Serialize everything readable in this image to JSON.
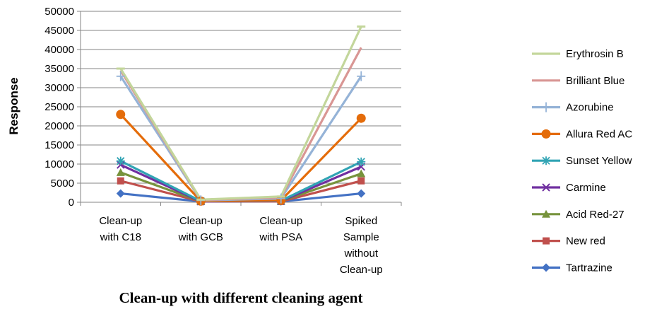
{
  "chart_data": {
    "type": "line",
    "categories": [
      [
        "Clean-up",
        "with C18"
      ],
      [
        "Clean-up",
        "with GCB"
      ],
      [
        "Clean-up",
        "with PSA"
      ],
      [
        "Spiked",
        "Sample",
        "without",
        "Clean-up"
      ]
    ],
    "xlabel": "Clean-up with different cleaning agent",
    "ylabel": "Response",
    "ylim": [
      0,
      50000
    ],
    "yticks": [
      0,
      5000,
      10000,
      15000,
      20000,
      25000,
      30000,
      35000,
      40000,
      45000,
      50000
    ],
    "grid": "horizontal",
    "legend_position": "right",
    "series": [
      {
        "name": "Tartrazine",
        "color": "#4472C4",
        "marker": "diamond",
        "values": [
          2300,
          200,
          200,
          2300
        ]
      },
      {
        "name": "New red",
        "color": "#C0504D",
        "marker": "square",
        "values": [
          5600,
          200,
          200,
          5600
        ]
      },
      {
        "name": "Acid Red-27",
        "color": "#77933C",
        "marker": "triangle",
        "values": [
          7800,
          200,
          300,
          7500
        ]
      },
      {
        "name": "Carmine",
        "color": "#7030A0",
        "marker": "x",
        "values": [
          9800,
          200,
          300,
          9300
        ]
      },
      {
        "name": "Sunset Yellow",
        "color": "#31A4B4",
        "marker": "star",
        "values": [
          10800,
          300,
          400,
          10600
        ]
      },
      {
        "name": "Allura Red AC",
        "color": "#E46C0A",
        "marker": "circle",
        "values": [
          23000,
          300,
          500,
          22000
        ]
      },
      {
        "name": "Azorubine",
        "color": "#95B3D7",
        "marker": "plus",
        "values": [
          33000,
          500,
          1000,
          33000
        ]
      },
      {
        "name": "Brilliant Blue",
        "color": "#D99694",
        "marker": "none",
        "values": [
          34500,
          600,
          1300,
          40500
        ]
      },
      {
        "name": "Erythrosin B",
        "color": "#C3D69B",
        "marker": "dash",
        "values": [
          35000,
          700,
          1500,
          46000
        ]
      }
    ],
    "legend_order": [
      "Erythrosin B",
      "Brilliant Blue",
      "Azorubine",
      "Allura Red AC",
      "Sunset Yellow",
      "Carmine",
      "Acid Red-27",
      "New red",
      "Tartrazine"
    ]
  }
}
